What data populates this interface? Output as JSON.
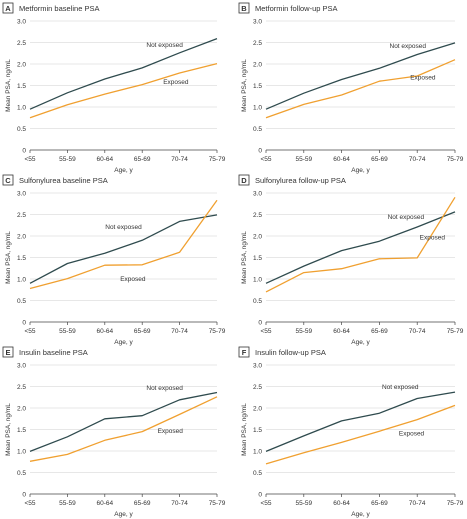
{
  "colors": {
    "not_exposed": "#2f4b4e",
    "exposed": "#f0a030",
    "grid": "#cfcfcf",
    "axis": "#444444",
    "text": "#333333",
    "badge_bg": "#ffffff",
    "badge_border": "#333333"
  },
  "shared": {
    "x_categories": [
      "<55",
      "55-59",
      "60-64",
      "65-69",
      "70-74",
      "75-79"
    ],
    "xlabel": "Age, y",
    "ylabel": "Mean PSA, ng/mL",
    "ylim": [
      0,
      3.0
    ],
    "yticks": [
      "0",
      "0.5",
      "1.0",
      "1.5",
      "2.0",
      "2.5",
      "3.0"
    ]
  },
  "chart_data": [
    {
      "panel": "A",
      "type": "line",
      "title": "Metformin baseline PSA",
      "xlabel": "Age, y",
      "ylabel": "Mean PSA, ng/mL",
      "ylim": [
        0,
        3.0
      ],
      "grid": true,
      "categories": [
        "<55",
        "55-59",
        "60-64",
        "65-69",
        "70-74",
        "75-79"
      ],
      "series": [
        {
          "name": "Not exposed",
          "values": [
            0.95,
            1.33,
            1.65,
            1.91,
            2.26,
            2.59
          ]
        },
        {
          "name": "Exposed",
          "values": [
            0.75,
            1.05,
            1.3,
            1.52,
            1.79,
            2.01
          ]
        }
      ]
    },
    {
      "panel": "B",
      "type": "line",
      "title": "Metformin follow-up PSA",
      "xlabel": "Age, y",
      "ylabel": "Mean PSA, ng/mL",
      "ylim": [
        0,
        3.0
      ],
      "grid": true,
      "categories": [
        "<55",
        "55-59",
        "60-64",
        "65-69",
        "70-74",
        "75-79"
      ],
      "series": [
        {
          "name": "Not exposed",
          "values": [
            0.95,
            1.32,
            1.64,
            1.9,
            2.22,
            2.49
          ]
        },
        {
          "name": "Exposed",
          "values": [
            0.75,
            1.06,
            1.28,
            1.6,
            1.72,
            2.1
          ]
        }
      ]
    },
    {
      "panel": "C",
      "type": "line",
      "title": "Sulfonylurea baseline PSA",
      "xlabel": "Age, y",
      "ylabel": "Mean PSA, ng/mL",
      "ylim": [
        0,
        3.0
      ],
      "grid": true,
      "categories": [
        "<55",
        "55-59",
        "60-64",
        "65-69",
        "70-74",
        "75-79"
      ],
      "series": [
        {
          "name": "Not exposed",
          "values": [
            0.9,
            1.36,
            1.6,
            1.9,
            2.34,
            2.49
          ]
        },
        {
          "name": "Exposed",
          "values": [
            0.78,
            1.01,
            1.32,
            1.33,
            1.62,
            2.83
          ]
        }
      ]
    },
    {
      "panel": "D",
      "type": "line",
      "title": "Sulfonylurea follow-up PSA",
      "xlabel": "Age, y",
      "ylabel": "Mean PSA, ng/mL",
      "ylim": [
        0,
        3.0
      ],
      "grid": true,
      "categories": [
        "<55",
        "55-59",
        "60-64",
        "65-69",
        "70-74",
        "75-79"
      ],
      "series": [
        {
          "name": "Not exposed",
          "values": [
            0.9,
            1.3,
            1.66,
            1.88,
            2.21,
            2.56
          ]
        },
        {
          "name": "Exposed",
          "values": [
            0.7,
            1.15,
            1.24,
            1.47,
            1.49,
            2.9
          ]
        }
      ]
    },
    {
      "panel": "E",
      "type": "line",
      "title": "Insulin baseline PSA",
      "xlabel": "Age, y",
      "ylabel": "Mean PSA, ng/mL",
      "ylim": [
        0,
        3.0
      ],
      "grid": true,
      "categories": [
        "<55",
        "55-59",
        "60-64",
        "65-69",
        "70-74",
        "75-79"
      ],
      "series": [
        {
          "name": "Not exposed",
          "values": [
            0.99,
            1.33,
            1.75,
            1.82,
            2.19,
            2.36
          ]
        },
        {
          "name": "Exposed",
          "values": [
            0.76,
            0.92,
            1.25,
            1.45,
            1.85,
            2.26
          ]
        }
      ]
    },
    {
      "panel": "F",
      "type": "line",
      "title": "Insulin follow-up PSA",
      "xlabel": "Age, y",
      "ylabel": "Mean PSA, ng/mL",
      "ylim": [
        0,
        3.0
      ],
      "grid": true,
      "categories": [
        "<55",
        "55-59",
        "60-64",
        "65-69",
        "70-74",
        "75-79"
      ],
      "series": [
        {
          "name": "Not exposed",
          "values": [
            0.99,
            1.35,
            1.7,
            1.88,
            2.22,
            2.37
          ]
        },
        {
          "name": "Exposed",
          "values": [
            0.7,
            0.96,
            1.2,
            1.46,
            1.73,
            2.06
          ]
        }
      ]
    }
  ]
}
